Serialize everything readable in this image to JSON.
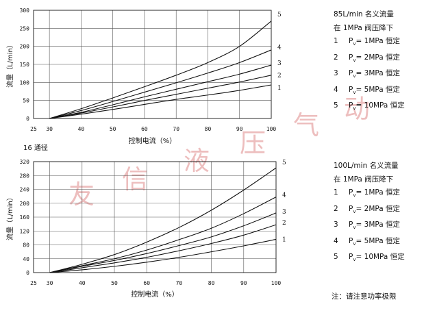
{
  "section_label": "16 通径",
  "note": "注：请注意功率极限",
  "watermark": [
    "友",
    "信",
    "液",
    "压",
    "气",
    "动"
  ],
  "chart_data": [
    {
      "type": "line",
      "xlabel": "控制电流（%）",
      "ylabel": "流量（L/min）",
      "xlim": [
        25,
        100
      ],
      "ylim": [
        0,
        300
      ],
      "xticks": [
        25,
        30,
        40,
        50,
        60,
        70,
        80,
        90,
        100
      ],
      "yticks": [
        0,
        50,
        100,
        150,
        200,
        250,
        300
      ],
      "grid": true,
      "legend": {
        "title": "85L/min 名义流量",
        "subtitle": "在 1MPa 阀压降下",
        "items": [
          {
            "num": "1",
            "label": "1MPa 恒定"
          },
          {
            "num": "2",
            "label": "2MPa 恒定"
          },
          {
            "num": "3",
            "label": "3MPa 恒定"
          },
          {
            "num": "4",
            "label": "5MPa 恒定"
          },
          {
            "num": "5",
            "label": "10MPa 恒定"
          }
        ]
      },
      "series": [
        {
          "name": "1",
          "x": [
            30,
            40,
            50,
            60,
            70,
            80,
            90,
            100
          ],
          "y": [
            0,
            12,
            25,
            39,
            53,
            65,
            78,
            93
          ]
        },
        {
          "name": "2",
          "x": [
            30,
            40,
            50,
            60,
            70,
            80,
            90,
            100
          ],
          "y": [
            0,
            15,
            32,
            50,
            67,
            84,
            101,
            120
          ]
        },
        {
          "name": "3",
          "x": [
            30,
            40,
            50,
            60,
            70,
            80,
            90,
            100
          ],
          "y": [
            0,
            17,
            38,
            60,
            81,
            102,
            123,
            148
          ]
        },
        {
          "name": "4",
          "x": [
            30,
            40,
            50,
            60,
            70,
            80,
            90,
            100
          ],
          "y": [
            0,
            22,
            47,
            73,
            99,
            126,
            155,
            190
          ]
        },
        {
          "name": "5",
          "x": [
            30,
            40,
            50,
            60,
            70,
            80,
            90,
            100
          ],
          "y": [
            0,
            27,
            57,
            88,
            120,
            155,
            200,
            270
          ]
        }
      ]
    },
    {
      "type": "line",
      "xlabel": "控制电流（%）",
      "ylabel": "流量（L/min）",
      "xlim": [
        25,
        100
      ],
      "ylim": [
        0,
        320
      ],
      "xticks": [
        25,
        30,
        40,
        50,
        60,
        70,
        80,
        90,
        100
      ],
      "yticks": [
        0,
        40,
        80,
        120,
        160,
        200,
        240,
        280,
        320
      ],
      "grid": true,
      "legend": {
        "title": "100L/min 名义流量",
        "subtitle": "在 1MPa 阀压降下",
        "items": [
          {
            "num": "1",
            "label": "1MPa 恒定"
          },
          {
            "num": "2",
            "label": "2MPa 恒定"
          },
          {
            "num": "3",
            "label": "3MPa 恒定"
          },
          {
            "num": "4",
            "label": "5MPa 恒定"
          },
          {
            "num": "5",
            "label": "10MPa 恒定"
          }
        ]
      },
      "series": [
        {
          "name": "1",
          "x": [
            30,
            40,
            50,
            60,
            70,
            80,
            90,
            100
          ],
          "y": [
            0,
            8,
            18,
            30,
            44,
            60,
            77,
            96
          ]
        },
        {
          "name": "2",
          "x": [
            30,
            40,
            50,
            60,
            70,
            80,
            90,
            100
          ],
          "y": [
            0,
            14,
            28,
            44,
            63,
            84,
            108,
            138
          ]
        },
        {
          "name": "3",
          "x": [
            30,
            40,
            50,
            60,
            70,
            80,
            90,
            100
          ],
          "y": [
            0,
            18,
            35,
            55,
            78,
            103,
            135,
            172
          ]
        },
        {
          "name": "4",
          "x": [
            30,
            40,
            50,
            60,
            70,
            80,
            90,
            100
          ],
          "y": [
            0,
            20,
            40,
            65,
            95,
            128,
            170,
            218
          ]
        },
        {
          "name": "5",
          "x": [
            30,
            40,
            50,
            60,
            70,
            80,
            90,
            100
          ],
          "y": [
            0,
            24,
            52,
            88,
            130,
            180,
            238,
            302
          ]
        }
      ]
    }
  ]
}
